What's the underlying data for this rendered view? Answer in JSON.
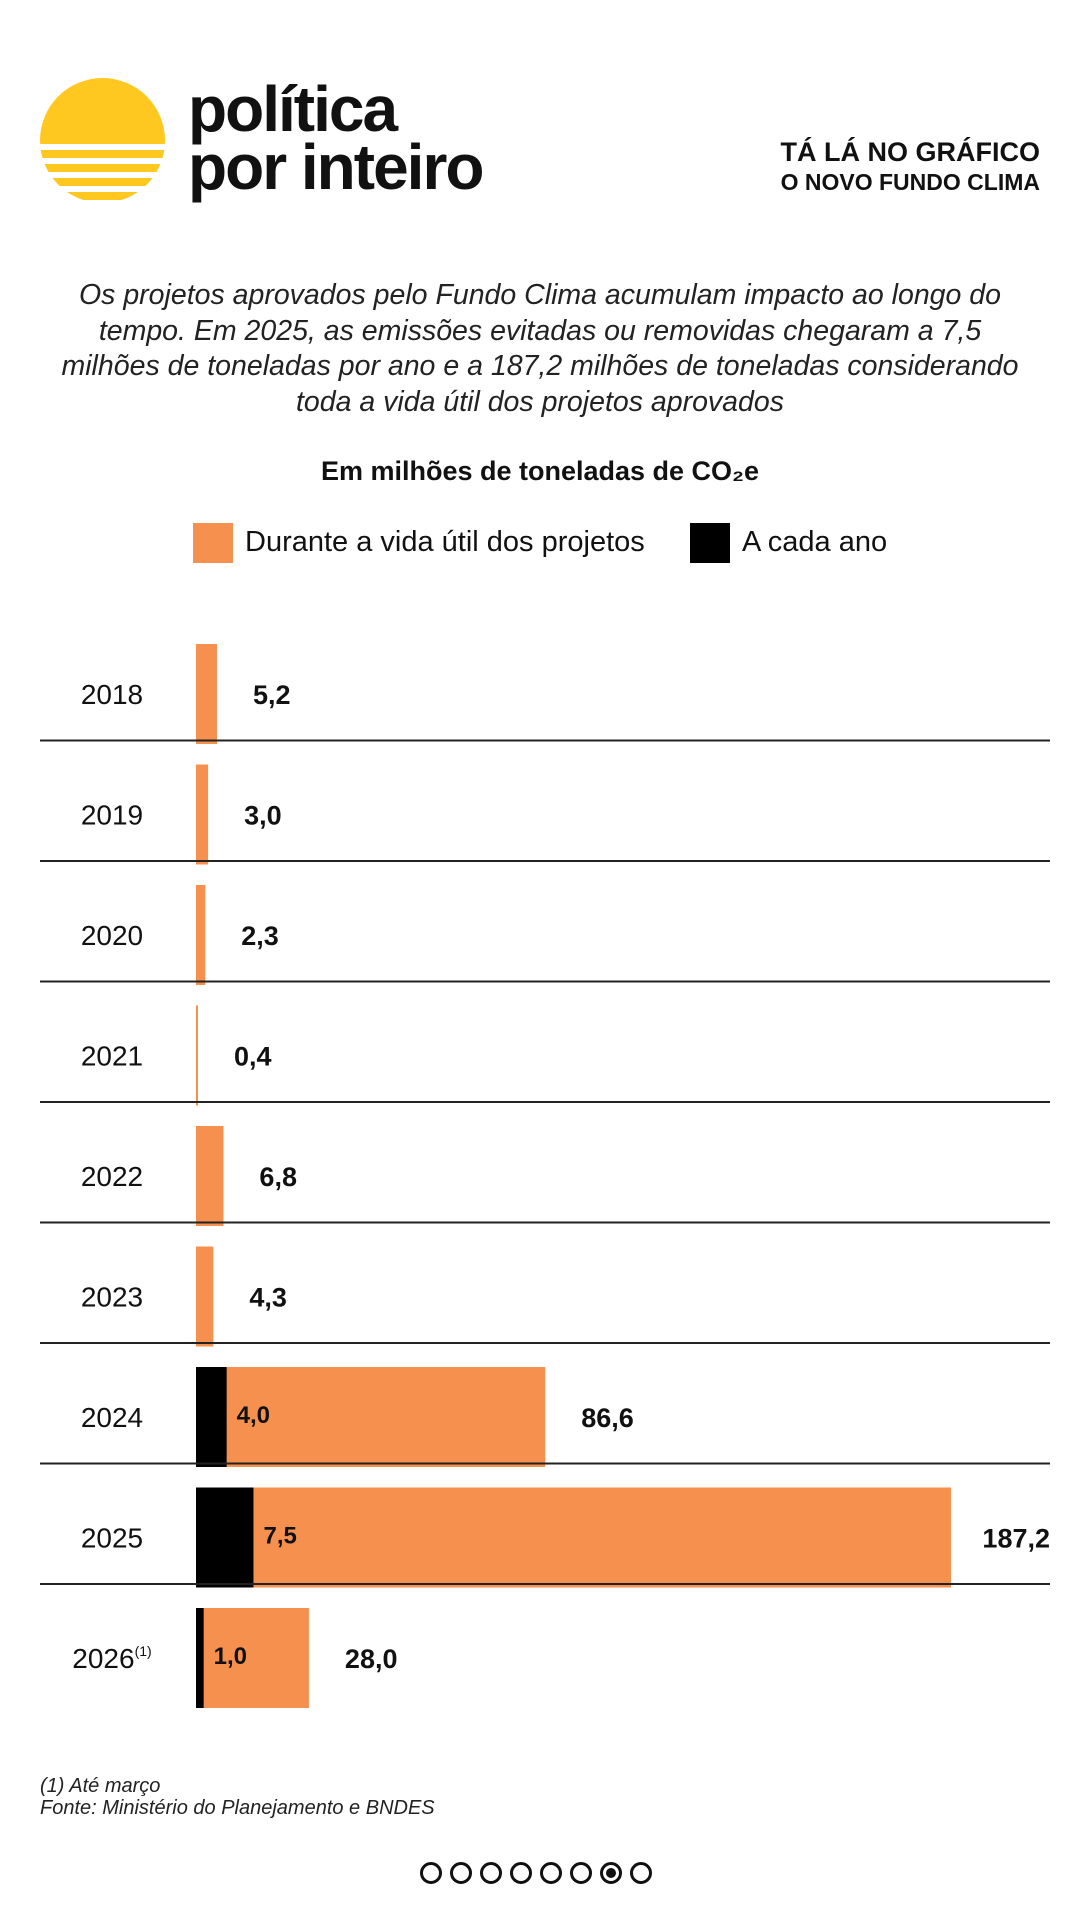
{
  "brand": {
    "line1": "política",
    "line2": "por inteiro",
    "sun_color": "#FFC820"
  },
  "section": {
    "line1": "TÁ LÁ NO GRÁFICO",
    "line2": "O NOVO FUNDO CLIMA"
  },
  "intro": "Os projetos aprovados pelo Fundo Clima acumulam impacto ao longo do tempo. Em 2025, as emissões evitadas ou removidas chegaram a 7,5 milhões de toneladas por ano e a 187,2 milhões de toneladas considerando toda a vida útil dos projetos aprovados",
  "colors": {
    "lifetime": "#F5904F",
    "annual": "#000000",
    "text": "#111111"
  },
  "chart_data": {
    "type": "bar",
    "orientation": "horizontal",
    "title": "Em milhões de toneladas de CO₂e",
    "categories": [
      "2018",
      "2019",
      "2020",
      "2021",
      "2022",
      "2023",
      "2024",
      "2025",
      "2026"
    ],
    "category_notes": [
      "",
      "",
      "",
      "",
      "",
      "",
      "",
      "",
      "(1)"
    ],
    "series": [
      {
        "name": "Durante a vida útil dos projetos",
        "color": "#F5904F",
        "values": [
          5.2,
          3.0,
          2.3,
          0.4,
          6.8,
          4.3,
          86.6,
          187.2,
          28.0
        ],
        "labels": [
          "5,2",
          "3,0",
          "2,3",
          "0,4",
          "6,8",
          "4,3",
          "86,6",
          "187,2",
          "28,0"
        ]
      },
      {
        "name": "A cada ano",
        "color": "#000000",
        "values": [
          null,
          null,
          null,
          null,
          null,
          null,
          4.0,
          7.5,
          1.0
        ],
        "labels": [
          "",
          "",
          "",
          "",
          "",
          "",
          "4,0",
          "7,5",
          "1,0"
        ]
      }
    ],
    "xlim": [
      0,
      187.2
    ],
    "legend_position": "top",
    "grid": false
  },
  "footer": {
    "note": "(1) Até março",
    "source": "Fonte: Ministério do Planejamento e BNDES"
  },
  "pagination": {
    "total": 8,
    "active": 7
  }
}
